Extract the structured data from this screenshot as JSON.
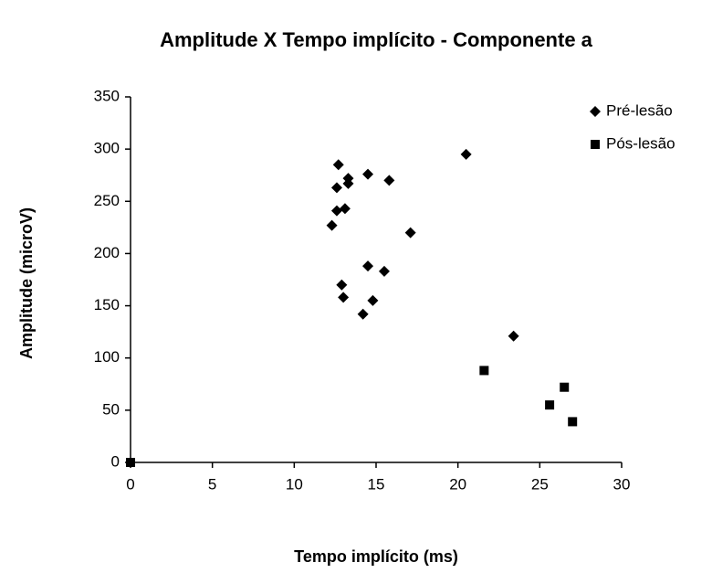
{
  "chart_data": {
    "type": "scatter",
    "title": "Amplitude X Tempo implícito - Componente a",
    "x_label": "Tempo implícito (ms)",
    "y_label": "Amplitude (microV)",
    "xlim": [
      0,
      30
    ],
    "xticks": [
      0,
      5,
      10,
      15,
      20,
      25,
      30
    ],
    "ylim": [
      0,
      350
    ],
    "yticks": [
      0,
      50,
      100,
      150,
      200,
      250,
      300,
      350
    ],
    "grid": false,
    "legend": "upper right",
    "series": [
      {
        "name": "Pré-lesão",
        "marker": "diamond",
        "color": "#000000",
        "x": [
          12.7,
          13.3,
          13.3,
          14.5,
          15.8,
          12.6,
          12.6,
          13.1,
          12.3,
          17.1,
          20.5,
          14.5,
          15.5,
          12.9,
          13.0,
          14.8,
          14.2,
          23.4
        ],
        "values": [
          285,
          272,
          267,
          276,
          270,
          263,
          241,
          243,
          227,
          220,
          295,
          188,
          183,
          170,
          158,
          155,
          142,
          121
        ]
      },
      {
        "name": "Pós-lesão",
        "marker": "square",
        "color": "#000000",
        "x": [
          0,
          21.6,
          25.6,
          26.5,
          27.0
        ],
        "values": [
          0,
          88,
          55,
          72,
          39
        ]
      }
    ]
  }
}
